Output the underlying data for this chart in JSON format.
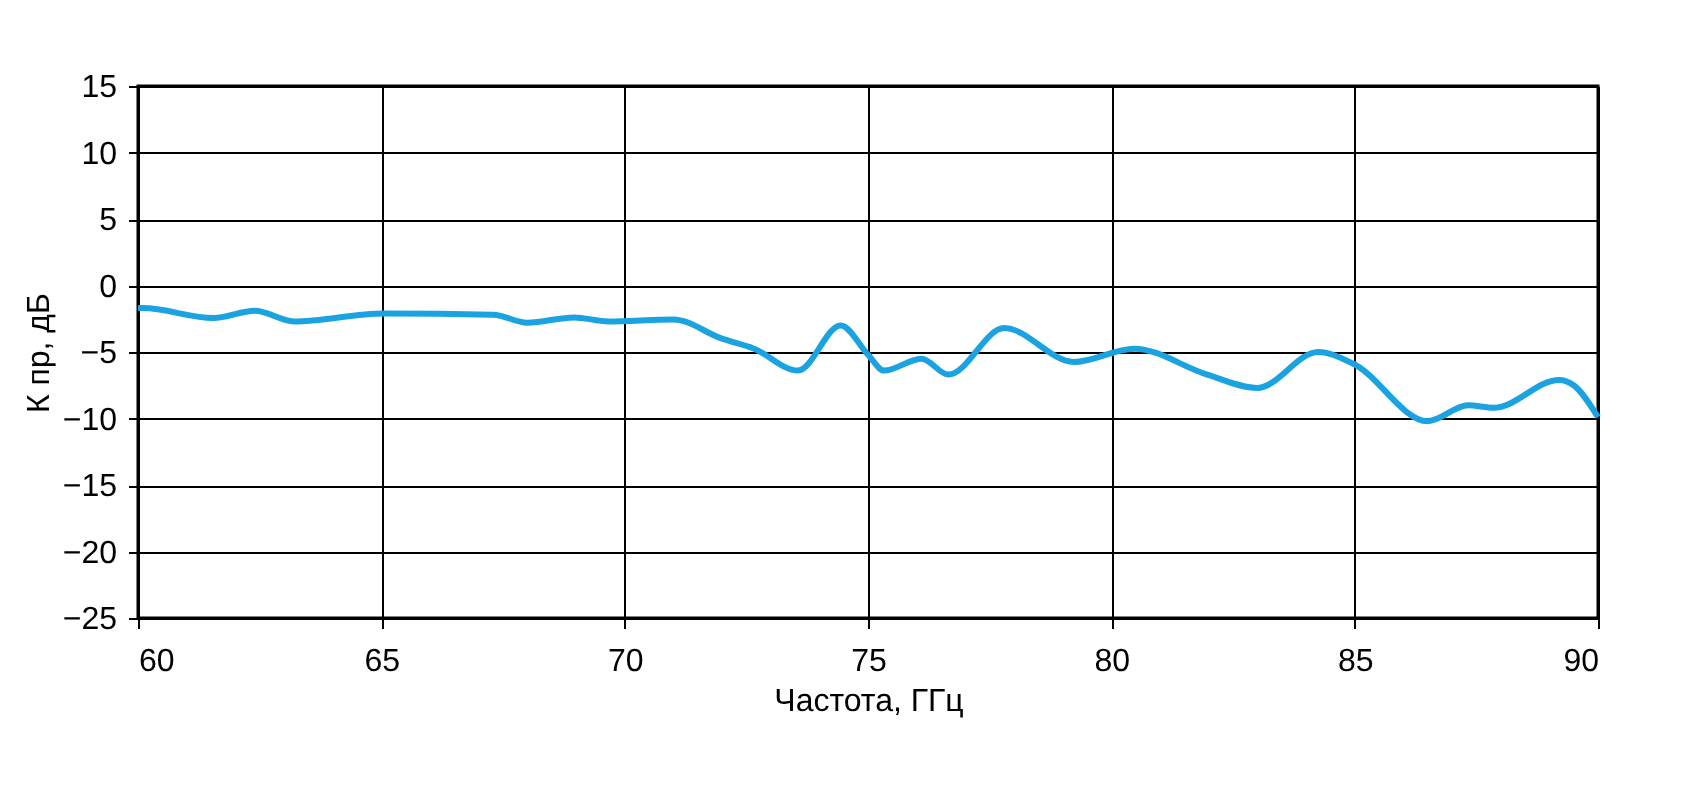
{
  "chart_data": {
    "type": "line",
    "xlabel": "Частота, ГГц",
    "ylabel": "К пр, дБ",
    "xlim": [
      60,
      90
    ],
    "xticks": [
      60,
      65,
      70,
      75,
      80,
      85,
      90
    ],
    "ylim": [
      -25,
      15
    ],
    "yticks": [
      -25,
      -20,
      -15,
      -10,
      -5,
      0,
      5,
      10,
      15
    ],
    "grid": true,
    "line_style": "solid",
    "marker": "none",
    "series": [
      {
        "color": "#1aa3e0",
        "x": [
          60,
          60.1,
          61.55,
          62.4,
          63.2,
          65.05,
          67.3,
          68.0,
          68.96,
          69.66,
          71.0,
          72.0,
          72.66,
          73.56,
          74.44,
          75.0,
          75.33,
          76.1,
          76.65,
          77.8,
          79.23,
          80.47,
          81.97,
          83.0,
          84.25,
          84.98,
          86.5,
          87.33,
          87.86,
          89.2,
          89.5,
          90
        ],
        "values": [
          -1.7,
          -1.7,
          -2.45,
          -1.9,
          -2.7,
          -2.1,
          -2.2,
          -2.8,
          -2.4,
          -2.7,
          -2.55,
          -4.0,
          -4.75,
          -6.4,
          -3.0,
          -5.2,
          -6.4,
          -5.5,
          -6.7,
          -3.2,
          -5.75,
          -4.75,
          -6.7,
          -7.7,
          -5.0,
          -5.9,
          -10.2,
          -9.0,
          -9.2,
          -7.1,
          -7.5,
          -9.9
        ]
      }
    ]
  }
}
